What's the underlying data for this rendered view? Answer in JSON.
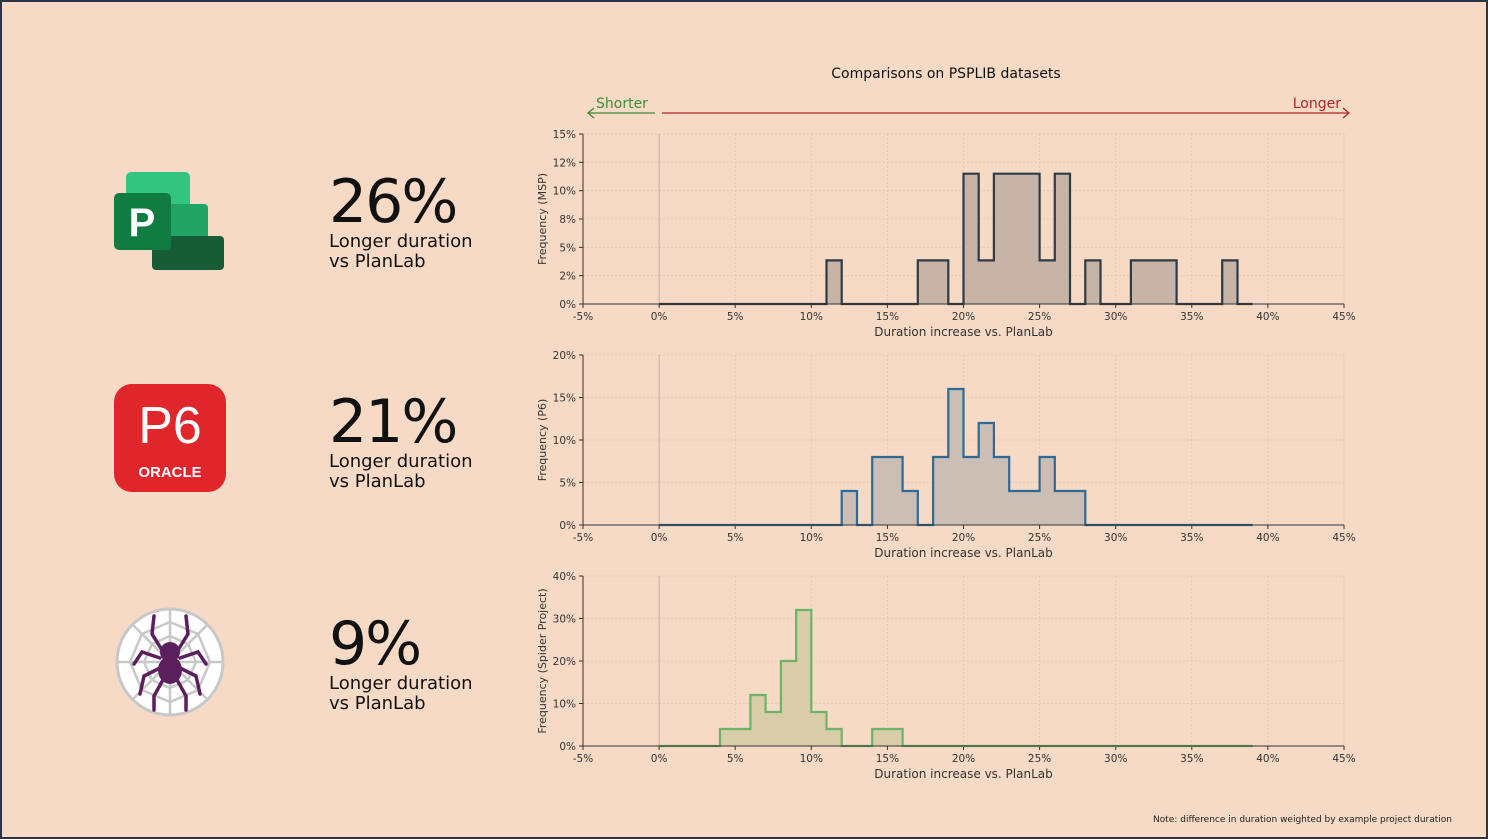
{
  "header": {
    "title": "Comparisons on PSPLIB datasets",
    "shorter_label": "Shorter",
    "longer_label": "Longer",
    "shorter_color": "#3f8a3a",
    "longer_color": "#b3262a"
  },
  "rows": [
    {
      "logo": "microsoft-project-logo",
      "value": "26%",
      "line1": "Longer duration",
      "line2": "vs PlanLab"
    },
    {
      "logo": "oracle-p6-logo",
      "logo_text": "P6",
      "logo_subtext": "ORACLE",
      "value": "21%",
      "line1": "Longer duration",
      "line2": "vs PlanLab"
    },
    {
      "logo": "spider-project-logo",
      "value": "9%",
      "line1": "Longer duration",
      "line2": "vs PlanLab"
    }
  ],
  "note": "Note: difference in duration weighted by example project duration",
  "chart_data": [
    {
      "type": "area",
      "style": "step histogram",
      "xlabel": "Duration increase vs. PlanLab",
      "ylabel": "Frequency (MSP)",
      "xlim": [
        -5,
        45
      ],
      "ylim": [
        0,
        15
      ],
      "grid": true,
      "xticks": [
        -5,
        0,
        5,
        10,
        15,
        20,
        25,
        30,
        35,
        40,
        45
      ],
      "xtick_labels": [
        "-5%",
        "0%",
        "5%",
        "10%",
        "15%",
        "20%",
        "25%",
        "30%",
        "35%",
        "40%",
        "45%"
      ],
      "yticks": [
        0,
        2.5,
        5,
        7.5,
        10,
        12.5,
        15
      ],
      "ytick_labels": [
        "0%",
        "2%",
        "5%",
        "8%",
        "10%",
        "12%",
        "15%"
      ],
      "color": "#2f3a45",
      "fill": "#c8b4a6",
      "bin_start": 0,
      "bin_width": 1,
      "values": [
        0,
        0,
        0,
        0,
        0,
        0,
        0,
        0,
        0,
        0,
        0,
        3.85,
        0,
        0,
        0,
        0,
        0,
        3.85,
        3.85,
        0,
        11.5,
        3.85,
        11.5,
        11.5,
        11.5,
        3.85,
        11.5,
        0,
        3.85,
        0,
        0,
        3.85,
        3.85,
        3.85,
        0,
        0,
        0,
        3.85,
        0
      ]
    },
    {
      "type": "area",
      "style": "step histogram",
      "xlabel": "Duration increase vs. PlanLab",
      "ylabel": "Frequency (P6)",
      "xlim": [
        -5,
        45
      ],
      "ylim": [
        0,
        20
      ],
      "grid": true,
      "xticks": [
        -5,
        0,
        5,
        10,
        15,
        20,
        25,
        30,
        35,
        40,
        45
      ],
      "xtick_labels": [
        "-5%",
        "0%",
        "5%",
        "10%",
        "15%",
        "20%",
        "25%",
        "30%",
        "35%",
        "40%",
        "45%"
      ],
      "yticks": [
        0,
        5,
        10,
        15,
        20
      ],
      "ytick_labels": [
        "0%",
        "5%",
        "10%",
        "15%",
        "20%"
      ],
      "color": "#2e6a96",
      "fill": "#cbbfb5",
      "bin_start": 0,
      "bin_width": 1,
      "values": [
        0,
        0,
        0,
        0,
        0,
        0,
        0,
        0,
        0,
        0,
        0,
        0,
        4,
        0,
        8,
        8,
        4,
        0,
        8,
        16,
        8,
        12,
        8,
        4,
        4,
        8,
        4,
        4,
        0,
        0,
        0,
        0,
        0,
        0,
        0,
        0,
        0,
        0,
        0
      ]
    },
    {
      "type": "area",
      "style": "step histogram",
      "xlabel": "Duration increase vs. PlanLab",
      "ylabel": "Frequency (Spider Project)",
      "xlim": [
        -5,
        45
      ],
      "ylim": [
        0,
        40
      ],
      "grid": true,
      "xticks": [
        -5,
        0,
        5,
        10,
        15,
        20,
        25,
        30,
        35,
        40,
        45
      ],
      "xtick_labels": [
        "-5%",
        "0%",
        "5%",
        "10%",
        "15%",
        "20%",
        "25%",
        "30%",
        "35%",
        "40%",
        "45%"
      ],
      "yticks": [
        0,
        10,
        20,
        30,
        40
      ],
      "ytick_labels": [
        "0%",
        "10%",
        "20%",
        "30%",
        "40%"
      ],
      "color": "#6cb36a",
      "fill": "#d9cca8",
      "bin_start": 0,
      "bin_width": 1,
      "values": [
        0,
        0,
        0,
        0,
        4,
        4,
        12,
        8,
        20,
        32,
        8,
        4,
        0,
        0,
        4,
        4,
        0,
        0,
        0,
        0,
        0,
        0,
        0,
        0,
        0,
        0,
        0,
        0,
        0,
        0,
        0,
        0,
        0,
        0,
        0,
        0,
        0,
        0,
        0
      ]
    }
  ]
}
